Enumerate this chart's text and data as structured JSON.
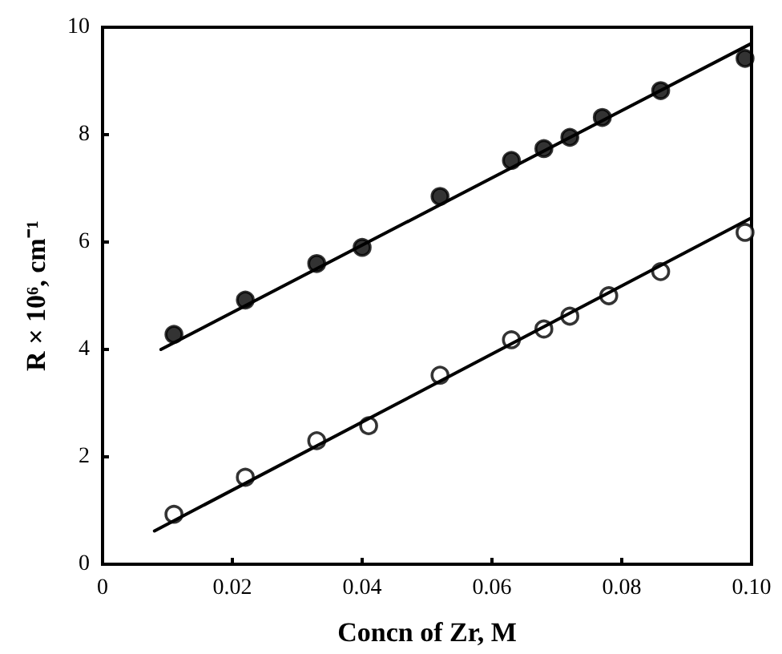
{
  "chart_data": {
    "type": "scatter",
    "xlabel": "Concn of Zr, M",
    "ylabel": "R × 10⁶, cm⁻¹",
    "xlim": [
      0,
      0.1
    ],
    "xticks": [
      0,
      0.02,
      0.04,
      0.06,
      0.08,
      {
        "value": 0.1,
        "label": "0.10"
      }
    ],
    "ylim": [
      0,
      10
    ],
    "yticks": [
      0,
      2,
      4,
      6,
      8,
      10
    ],
    "marker": "circle",
    "series": [
      {
        "color": "#000000",
        "x": [
          0.011,
          0.022,
          0.033,
          0.04,
          0.052,
          0.063,
          0.068,
          0.072,
          0.077,
          0.086,
          0.099
        ],
        "values": [
          4.28,
          4.92,
          5.6,
          5.9,
          6.85,
          7.52,
          7.74,
          7.95,
          8.32,
          8.82,
          9.42
        ]
      },
      {
        "color": "#ffffff",
        "x": [
          0.011,
          0.022,
          0.033,
          0.041,
          0.052,
          0.063,
          0.068,
          0.072,
          0.078,
          0.086,
          0.099
        ],
        "values": [
          0.93,
          1.62,
          2.3,
          2.58,
          3.52,
          4.18,
          4.38,
          4.62,
          5.0,
          5.45,
          6.18
        ]
      },
      {
        "type": "line",
        "color": "#000000",
        "marker": "none",
        "line_style": "solid",
        "x": [
          0.009,
          0.1
        ],
        "values": [
          4.0,
          9.7
        ]
      },
      {
        "type": "line",
        "color": "#000000",
        "marker": "none",
        "line_style": "solid",
        "x": [
          0.008,
          0.1
        ],
        "values": [
          0.62,
          6.45
        ]
      }
    ]
  }
}
